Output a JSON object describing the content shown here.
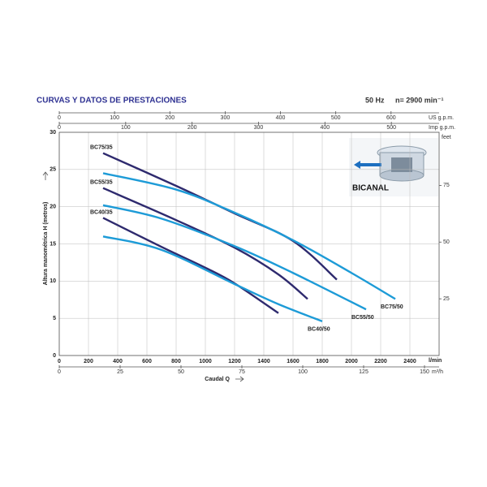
{
  "chart_data": {
    "type": "line",
    "title": "CURVAS Y DATOS DE PRESTACIONES",
    "frequency": "50 Hz",
    "speed": "n= 2900 min⁻¹",
    "ylabel": "Altura manométrica H (metros)",
    "xlabel": "Caudal Q",
    "xunit": "l/min",
    "xlim": [
      0,
      2600
    ],
    "xticks": [
      0,
      200,
      400,
      600,
      800,
      1000,
      1200,
      1400,
      1600,
      1800,
      2000,
      2200,
      2400
    ],
    "ylim": [
      0,
      30
    ],
    "yticks": [
      0,
      5,
      10,
      15,
      20,
      25,
      30
    ],
    "grid": true,
    "us_gpm_axis": {
      "label": "US g.p.m.",
      "xlim": [
        0,
        686.9
      ],
      "xticks": [
        0,
        100,
        200,
        300,
        400,
        500,
        600
      ]
    },
    "imp_gpm_axis": {
      "label": "Imp g.p.m.",
      "xlim": [
        0,
        571.9
      ],
      "xticks": [
        0,
        100,
        200,
        300,
        400,
        500
      ]
    },
    "m3h_axis": {
      "label": "m³/h",
      "xlim": [
        0,
        156
      ],
      "xticks": [
        0,
        25,
        50,
        75,
        100,
        125,
        150
      ]
    },
    "feet_axis": {
      "label": "feet",
      "y2lim": [
        0,
        98.4
      ],
      "y2ticks": [
        25,
        50,
        75
      ]
    },
    "annotation": "BICANAL",
    "series": [
      {
        "name": "BC75/35",
        "color": "#2e2a6e",
        "x": [
          300,
          800,
          1200,
          1600,
          1900
        ],
        "values": [
          27.2,
          22.8,
          19.1,
          15.4,
          10.2
        ]
      },
      {
        "name": "BC55/35",
        "color": "#2e2a6e",
        "x": [
          300,
          800,
          1200,
          1500,
          1700
        ],
        "values": [
          22.5,
          18.2,
          14.5,
          10.9,
          7.6
        ]
      },
      {
        "name": "BC40/35",
        "color": "#2e2a6e",
        "x": [
          300,
          700,
          1000,
          1200,
          1500
        ],
        "values": [
          18.5,
          14.6,
          11.8,
          9.7,
          5.7
        ]
      },
      {
        "name": "BC75/50",
        "color": "#1d9bd7",
        "x": [
          300,
          800,
          1200,
          1600,
          2000,
          2300
        ],
        "values": [
          24.5,
          22.3,
          19.2,
          15.5,
          11.1,
          7.6
        ]
      },
      {
        "name": "BC55/50",
        "color": "#1d9bd7",
        "x": [
          300,
          700,
          1200,
          1600,
          2100
        ],
        "values": [
          20.2,
          18.4,
          14.7,
          11.1,
          6.2
        ]
      },
      {
        "name": "BC40/50",
        "color": "#1d9bd7",
        "x": [
          300,
          700,
          1200,
          1500,
          1800
        ],
        "values": [
          16.0,
          14.2,
          9.6,
          6.9,
          4.6
        ]
      }
    ]
  }
}
